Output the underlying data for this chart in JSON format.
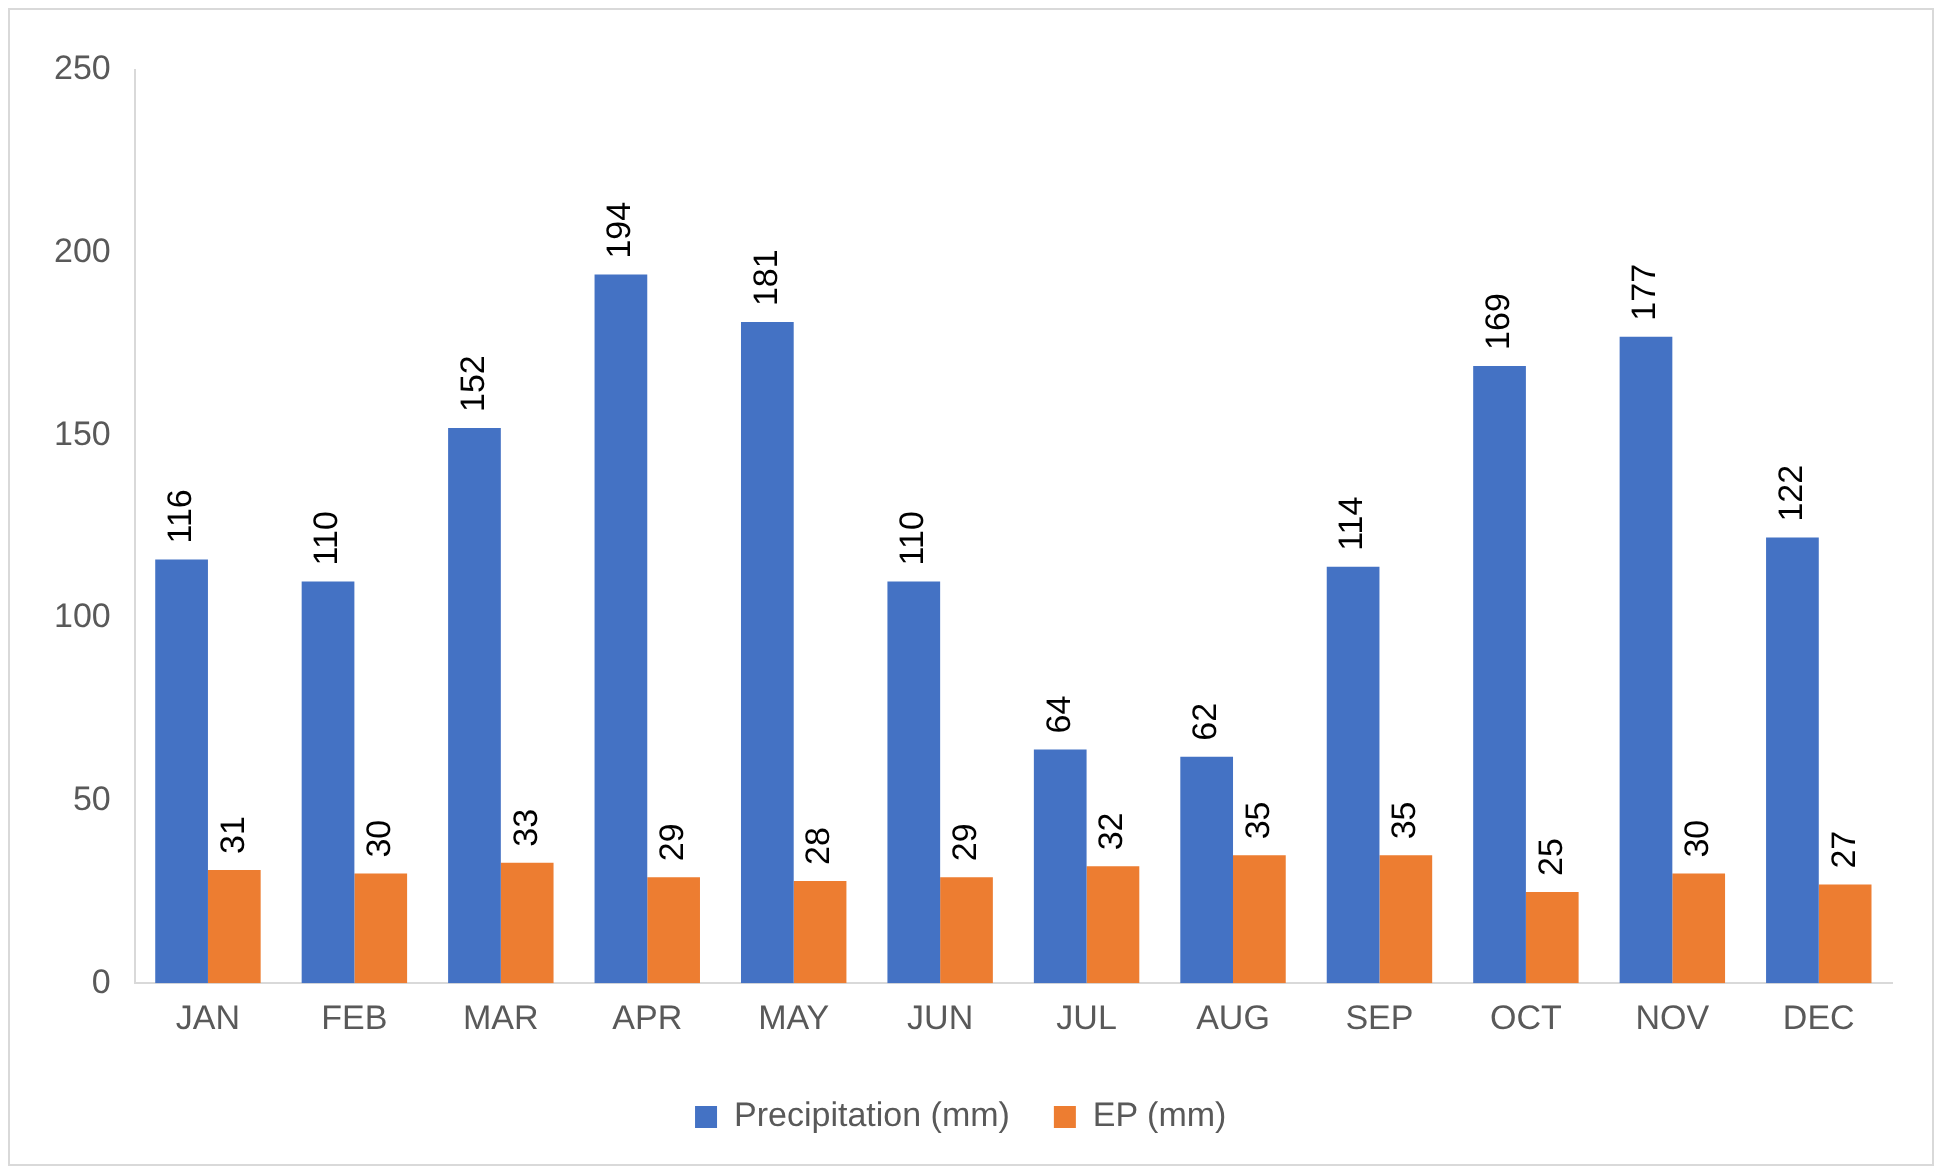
{
  "chart_data": {
    "type": "bar",
    "categories": [
      "JAN",
      "FEB",
      "MAR",
      "APR",
      "MAY",
      "JUN",
      "JUL",
      "AUG",
      "SEP",
      "OCT",
      "NOV",
      "DEC"
    ],
    "series": [
      {
        "name": "Precipitation (mm)",
        "color": "#4472c4",
        "values": [
          116,
          110,
          152,
          194,
          181,
          110,
          64,
          62,
          114,
          169,
          177,
          122
        ]
      },
      {
        "name": "EP (mm)",
        "color": "#ed7d31",
        "values": [
          31,
          30,
          33,
          29,
          28,
          29,
          32,
          35,
          35,
          25,
          30,
          27
        ]
      }
    ],
    "ylim": [
      0,
      250
    ],
    "yticks": [
      0,
      50,
      100,
      150,
      200,
      250
    ],
    "grid": false,
    "legend": "bottom",
    "data_labels": true
  }
}
